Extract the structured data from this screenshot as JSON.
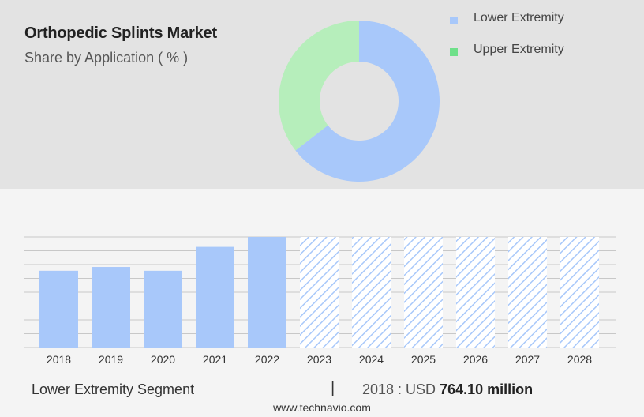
{
  "header": {
    "title": "Orthopedic Splints Market",
    "subtitle": "Share by Application ( % )"
  },
  "colors": {
    "lower": "#a8c8fa",
    "upper": "#b6eebb",
    "upper_swatch": "#6fe08a"
  },
  "footer": {
    "segment": "Lower Extremity Segment",
    "separator": "|",
    "year_label": "2018 : USD",
    "value": "764.10 million",
    "website": "www.technavio.com"
  },
  "chart_data": [
    {
      "type": "pie",
      "labels": [
        "Lower Extremity",
        "Upper Extremity"
      ],
      "values": [
        64.5,
        35.5
      ],
      "legend": "right"
    },
    {
      "type": "bar",
      "categories": [
        "2018",
        "2019",
        "2020",
        "2021",
        "2022",
        "2023",
        "2024",
        "2025",
        "2026",
        "2027",
        "2028"
      ],
      "values": [
        764.1,
        802,
        764,
        1002,
        1101,
        null,
        null,
        null,
        null,
        null,
        null
      ],
      "forecast_from": "2023",
      "series": [
        {
          "name": "Lower Extremity Segment"
        }
      ],
      "grid": true,
      "ylim": [
        0,
        1101
      ]
    }
  ]
}
